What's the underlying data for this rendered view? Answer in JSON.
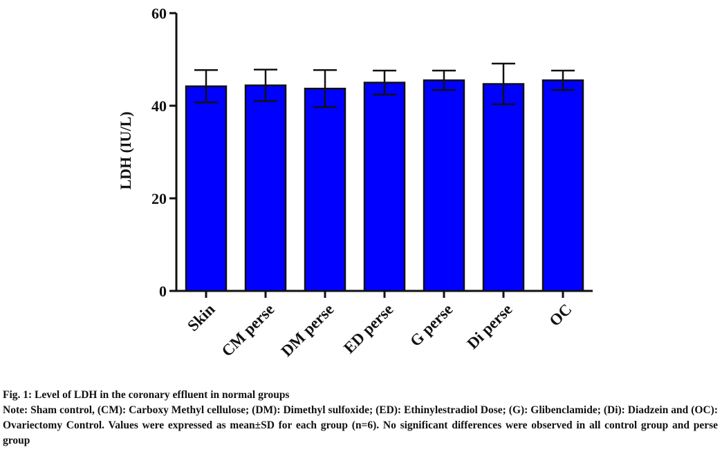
{
  "chart_data": {
    "type": "bar",
    "ylabel": "LDH (IU/L)",
    "ylim": [
      0,
      60
    ],
    "yticks": [
      0,
      20,
      40,
      60
    ],
    "categories": [
      "Skin",
      "CM perse",
      "DM perse",
      "ED perse",
      "G perse",
      "Di perse",
      "OC"
    ],
    "values": [
      44.2,
      44.4,
      43.7,
      45.0,
      45.5,
      44.7,
      45.5
    ],
    "errors": [
      3.5,
      3.4,
      4.0,
      2.6,
      2.1,
      4.4,
      2.1
    ],
    "bar_color": "#0000ff",
    "error_bars": "mean ± SD"
  },
  "caption": {
    "title": "Fig. 1: Level of LDH in the coronary effluent in normal groups",
    "note": "Note: Sham control, (CM): Carboxy Methyl cellulose; (DM): Dimethyl sulfoxide; (ED): Ethinylestradiol Dose; (G): Glibenclamide; (Di): Diadzein and (OC): Ovariectomy Control. Values were expressed as mean±SD for each group (n=6). No significant differences were observed in all control group and perse group"
  }
}
